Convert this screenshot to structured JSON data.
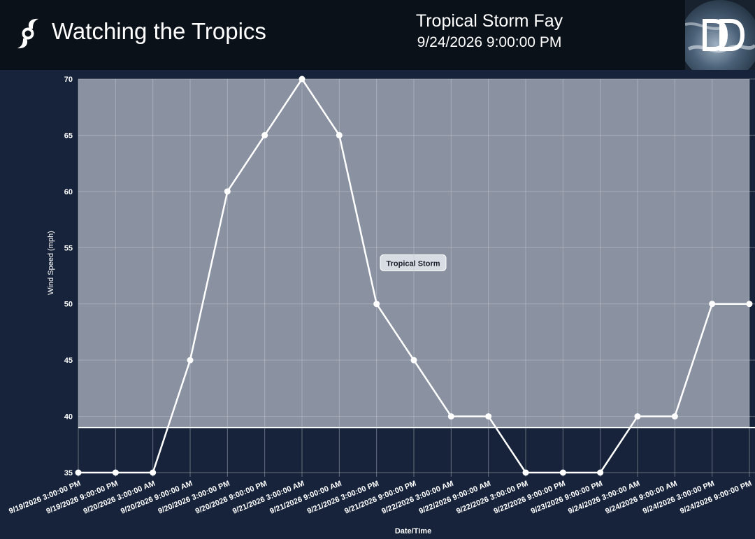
{
  "header": {
    "app_title": "Watching the Tropics",
    "storm_name": "Tropical Storm Fay",
    "timestamp": "9/24/2026 9:00:00 PM",
    "app_icon": "hurricane-icon",
    "logo": "dd-logo"
  },
  "colors": {
    "header_bg": "#0b1119",
    "page_bg": "#16233a",
    "band_fill": "#8a92a1",
    "line": "#ffffff",
    "grid": "#c8ccd4"
  },
  "chart_data": {
    "type": "line",
    "title": "",
    "xlabel": "Date/Time",
    "ylabel": "Wind Speed (mph)",
    "categories": [
      "9/19/2026 3:00:00 PM",
      "9/19/2026 9:00:00 PM",
      "9/20/2026 3:00:00 AM",
      "9/20/2026 9:00:00 AM",
      "9/20/2026 3:00:00 PM",
      "9/20/2026 9:00:00 PM",
      "9/21/2026 3:00:00 AM",
      "9/21/2026 9:00:00 AM",
      "9/21/2026 3:00:00 PM",
      "9/21/2026 9:00:00 PM",
      "9/22/2026 3:00:00 AM",
      "9/22/2026 9:00:00 AM",
      "9/22/2026 3:00:00 PM",
      "9/22/2026 9:00:00 PM",
      "9/23/2026 9:00:00 PM",
      "9/24/2026 3:00:00 AM",
      "9/24/2026 9:00:00 AM",
      "9/24/2026 3:00:00 PM",
      "9/24/2026 9:00:00 PM"
    ],
    "values": [
      35,
      35,
      35,
      45,
      60,
      65,
      70,
      65,
      50,
      45,
      40,
      40,
      35,
      35,
      35,
      40,
      40,
      50,
      50
    ],
    "ylim": [
      35,
      70
    ],
    "yticks": [
      35,
      40,
      45,
      50,
      55,
      60,
      65,
      70
    ],
    "grid": true,
    "bands": [
      {
        "label": "Tropical Storm",
        "from": 39,
        "to": 70
      }
    ]
  }
}
